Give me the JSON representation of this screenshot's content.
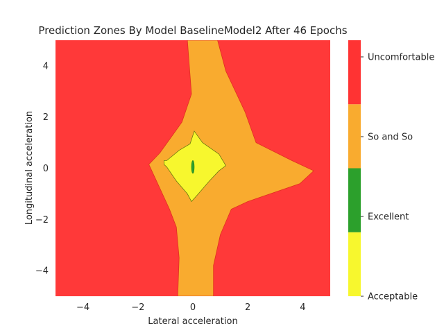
{
  "chart_data": {
    "type": "contour",
    "title": "Prediction Zones By Model BaselineModel2 After 46 Epochs",
    "xlabel": "Lateral acceleration",
    "ylabel": "Longitudinal acceleration",
    "xlim": [
      -5,
      5
    ],
    "ylim": [
      -5,
      5
    ],
    "x_ticks": [
      "−4",
      "−2",
      "0",
      "2",
      "4"
    ],
    "y_ticks": [
      "−4",
      "−2",
      "0",
      "2",
      "4"
    ],
    "x_tick_values": [
      -4,
      -2,
      0,
      2,
      4
    ],
    "y_tick_values": [
      -4,
      -2,
      0,
      2,
      4
    ],
    "grid": false,
    "zones": [
      {
        "name": "Uncomfortable",
        "color": "#ff3333",
        "region": "background"
      },
      {
        "name": "So and So",
        "color": "#f9ab2f",
        "boundary": [
          [
            -0.55,
            -5
          ],
          [
            -0.5,
            -3.5
          ],
          [
            -0.6,
            -2.3
          ],
          [
            -0.85,
            -1.6
          ],
          [
            -1.6,
            0.15
          ],
          [
            -1.2,
            0.6
          ],
          [
            -0.4,
            1.8
          ],
          [
            -0.05,
            2.9
          ],
          [
            -0.2,
            5
          ],
          [
            0.9,
            5
          ],
          [
            1.2,
            3.8
          ],
          [
            1.9,
            2.2
          ],
          [
            2.3,
            1.0
          ],
          [
            3.6,
            0.3
          ],
          [
            4.4,
            -0.1
          ],
          [
            3.9,
            -0.6
          ],
          [
            2.0,
            -1.3
          ],
          [
            1.4,
            -1.6
          ],
          [
            1.0,
            -2.6
          ],
          [
            0.75,
            -3.8
          ],
          [
            0.75,
            -5
          ]
        ]
      },
      {
        "name": "Acceptable",
        "color": "#f7f72e",
        "boundary": [
          [
            -1.05,
            0.3
          ],
          [
            -0.95,
            0.3
          ],
          [
            -0.5,
            0.7
          ],
          [
            -0.1,
            0.95
          ],
          [
            0.05,
            1.45
          ],
          [
            0.35,
            1.0
          ],
          [
            0.95,
            0.55
          ],
          [
            1.2,
            0.1
          ],
          [
            0.95,
            -0.1
          ],
          [
            0.6,
            -0.5
          ],
          [
            0.2,
            -1.0
          ],
          [
            -0.05,
            -1.3
          ],
          [
            -0.2,
            -1.0
          ],
          [
            -0.6,
            -0.5
          ],
          [
            -0.95,
            0.05
          ],
          [
            -1.05,
            0.15
          ]
        ]
      },
      {
        "name": "Excellent",
        "color": "#2ca02c",
        "ellipse": {
          "cx": 0.0,
          "cy": 0.05,
          "rx": 0.05,
          "ry": 0.25
        }
      }
    ],
    "colorbar": {
      "labels": [
        "Uncomfortable",
        "So and So",
        "Excellent",
        "Acceptable"
      ],
      "segments": [
        {
          "label": "Acceptable",
          "color": "#f7f72e",
          "from": 0.0,
          "to": 0.25
        },
        {
          "label": "Excellent",
          "color": "#2ca02c",
          "from": 0.25,
          "to": 0.5
        },
        {
          "label": "So and So",
          "color": "#f9ab2f",
          "from": 0.5,
          "to": 0.75
        },
        {
          "label": "Uncomfortable",
          "color": "#ff3333",
          "from": 0.75,
          "to": 1.0
        }
      ]
    }
  }
}
